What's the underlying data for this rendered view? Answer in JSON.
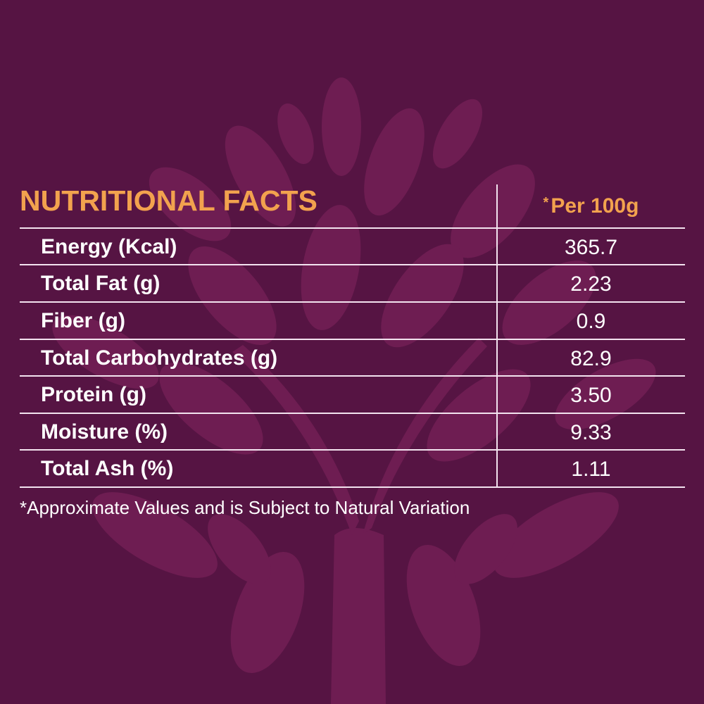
{
  "title": "NUTRITIONAL FACTS",
  "per_asterisk": "*",
  "per_label": "Per 100g",
  "rows": [
    {
      "label": "Energy (Kcal)",
      "value": "365.7"
    },
    {
      "label": "Total Fat (g)",
      "value": "2.23"
    },
    {
      "label": "Fiber (g)",
      "value": "0.9"
    },
    {
      "label": "Total Carbohydrates (g)",
      "value": "82.9"
    },
    {
      "label": "Protein (g)",
      "value": "3.50"
    },
    {
      "label": "Moisture (%)",
      "value": "9.33"
    },
    {
      "label": "Total Ash (%)",
      "value": "1.11"
    }
  ],
  "footnote": "*Approximate Values and is Subject to Natural Variation",
  "colors": {
    "background": "#561443",
    "tree": "#6e1d52",
    "accent": "#f2a24e",
    "text": "#ffffff"
  }
}
